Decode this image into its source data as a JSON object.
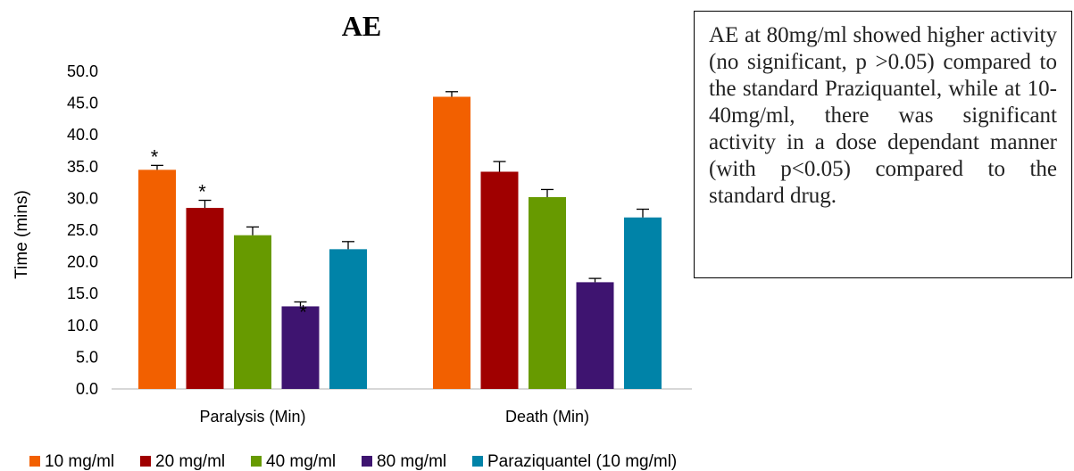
{
  "chart_data": {
    "type": "bar",
    "title": "AE",
    "xlabel": "",
    "ylabel": "Time (mins)",
    "ylim": [
      0,
      50
    ],
    "yticks": [
      "0.0",
      "5.0",
      "10.0",
      "15.0",
      "20.0",
      "25.0",
      "30.0",
      "35.0",
      "40.0",
      "45.0",
      "50.0"
    ],
    "categories": [
      "Paralysis (Min)",
      "Death (Min)"
    ],
    "legend_position": "bottom",
    "series": [
      {
        "name": "10 mg/ml",
        "color": "#f26000",
        "values": [
          34.5,
          46.0
        ],
        "errors": [
          0.7,
          0.8
        ],
        "marks": [
          "*",
          ""
        ]
      },
      {
        "name": "20 mg/ml",
        "color": "#a00000",
        "values": [
          28.5,
          34.2
        ],
        "errors": [
          1.2,
          1.6
        ],
        "marks": [
          "*",
          ""
        ]
      },
      {
        "name": "40 mg/ml",
        "color": "#679a00",
        "values": [
          24.2,
          30.2
        ],
        "errors": [
          1.3,
          1.2
        ],
        "marks": [
          "",
          ""
        ]
      },
      {
        "name": "80 mg/ml",
        "color": "#3e1470",
        "values": [
          13.0,
          16.8
        ],
        "errors": [
          0.7,
          0.6
        ],
        "marks": [
          "*",
          ""
        ]
      },
      {
        "name": "Paraziquantel (10 mg/ml)",
        "color": "#0083a8",
        "values": [
          22.0,
          27.0
        ],
        "errors": [
          1.2,
          1.3
        ],
        "marks": [
          "",
          ""
        ]
      }
    ]
  },
  "note": {
    "text": "AE at 80mg/ml showed higher activity (no significant, p >0.05) compared to the standard Praziquantel, while at 10-40mg/ml, there was significant activity in a dose dependant manner (with p<0.05) compared to the standard drug."
  }
}
